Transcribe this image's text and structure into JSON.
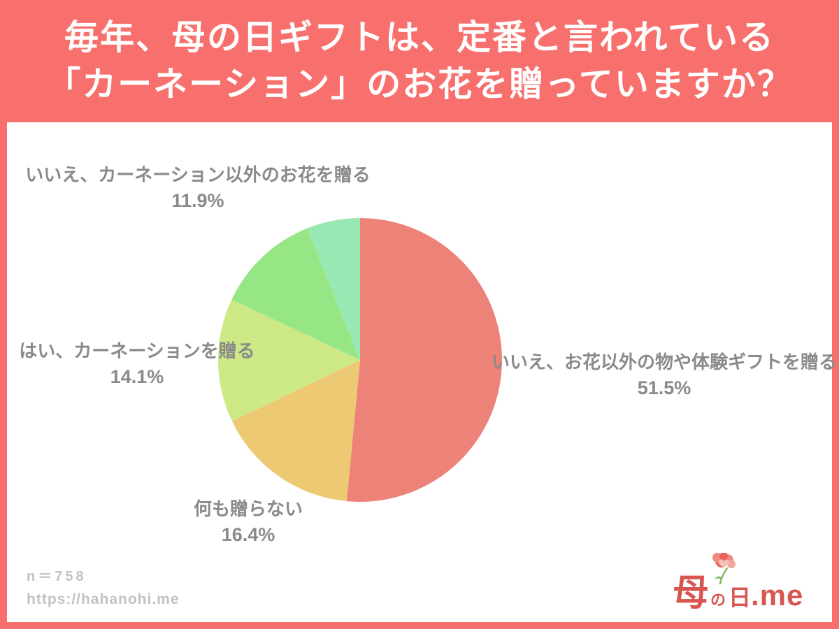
{
  "header": {
    "title_line1": "毎年、母の日ギフトは、定番と言われている",
    "title_line2": "「カーネーション」のお花を贈っていますか？"
  },
  "chart_data": {
    "type": "pie",
    "start_angle_deg": -90,
    "direction": "clockwise",
    "legend_position": "labels-around-pie",
    "slices": [
      {
        "label": "いいえ、お花以外の物や体験ギフトを贈る",
        "value": 51.5,
        "pct": "51.5%",
        "color": "#ec8278"
      },
      {
        "label": "何も贈らない",
        "value": 16.4,
        "pct": "16.4%",
        "color": "#edc973"
      },
      {
        "label": "はい、カーネーションを贈る",
        "value": 14.1,
        "pct": "14.1%",
        "color": "#cce985"
      },
      {
        "label": "いいえ、カーネーション以外のお花を贈る",
        "value": 11.9,
        "pct": "11.9%",
        "color": "#97e686"
      },
      {
        "label": "",
        "value": 6.1,
        "pct": "",
        "color": "#97e8b2"
      }
    ]
  },
  "footer": {
    "sample_size": "n＝758",
    "url": "https://hahanohi.me"
  },
  "logo": {
    "char_haha": "母",
    "char_no": "の",
    "char_hi": "日",
    "suffix": ".me"
  },
  "colors": {
    "page_background": "#f7706d",
    "card_background": "#ffffff",
    "title_text": "#ffffff",
    "label_text": "#8a8a8a",
    "footer_text": "#c2c2c2",
    "logo_red": "#d8564f"
  }
}
